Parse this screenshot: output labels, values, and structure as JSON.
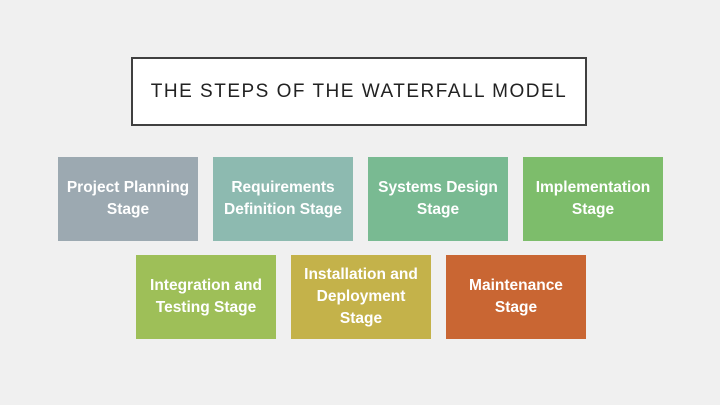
{
  "title": "The Steps of the Waterfall Model",
  "stages": [
    {
      "label": "Project Planning Stage",
      "color": "#9ca9b1"
    },
    {
      "label": "Requirements Definition Stage",
      "color": "#8dbab0"
    },
    {
      "label": "Systems Design Stage",
      "color": "#79ba92"
    },
    {
      "label": "Implementation Stage",
      "color": "#7dbd6b"
    },
    {
      "label": "Integration and Testing Stage",
      "color": "#9ebf58"
    },
    {
      "label": "Installation and Deployment Stage",
      "color": "#c4b24a"
    },
    {
      "label": "Maintenance Stage",
      "color": "#c96633"
    }
  ]
}
